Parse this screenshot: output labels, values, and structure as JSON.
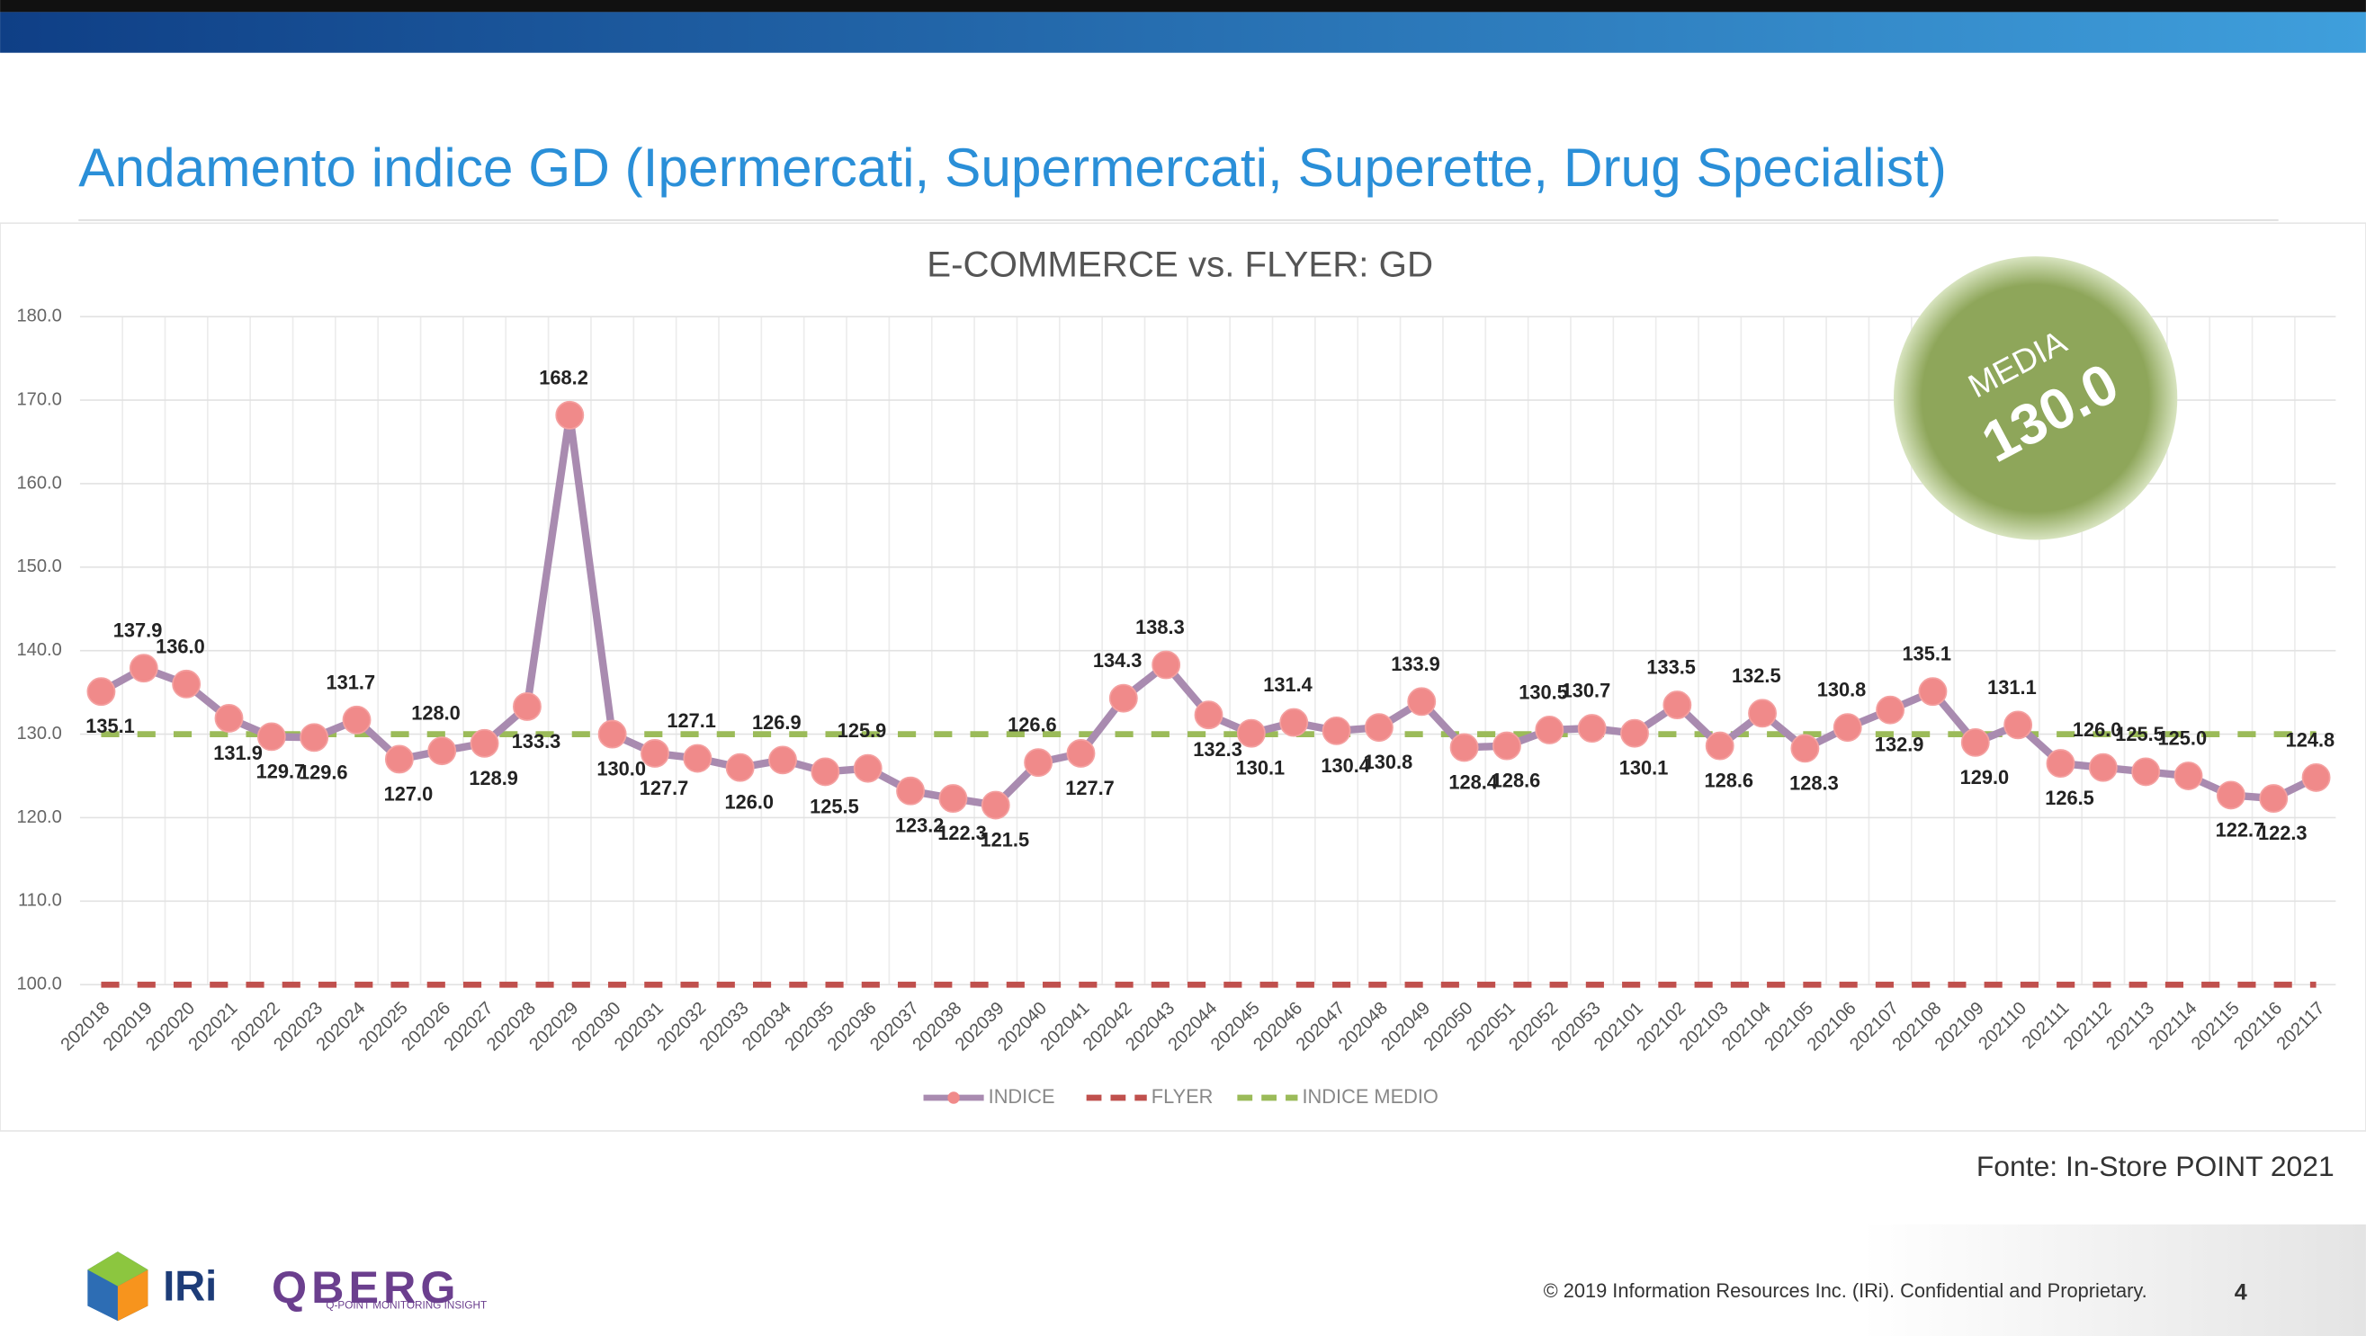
{
  "header": {
    "title": "Andamento indice GD (Ipermercati, Supermercati, Superette, Drug Specialist)"
  },
  "badge": {
    "title": "MEDIA",
    "text": "130.0"
  },
  "source": "Fonte: In-Store POINT 2021",
  "footer": {
    "copyright": "© 2019 Information Resources Inc. (IRi). Confidential and Proprietary.",
    "page": "4",
    "logo_iri": "IRi",
    "logo_qberg": "QBERG",
    "logo_qberg_tagline": "Q-POINT MONITORING INSIGHT"
  },
  "chart_data": {
    "type": "line",
    "title": "E-COMMERCE vs. FLYER: GD",
    "categories": [
      "202018",
      "202019",
      "202020",
      "202021",
      "202022",
      "202023",
      "202024",
      "202025",
      "202026",
      "202027",
      "202028",
      "202029",
      "202030",
      "202031",
      "202032",
      "202033",
      "202034",
      "202035",
      "202036",
      "202037",
      "202038",
      "202039",
      "202040",
      "202041",
      "202042",
      "202043",
      "202044",
      "202045",
      "202046",
      "202047",
      "202048",
      "202049",
      "202050",
      "202051",
      "202052",
      "202053",
      "202101",
      "202102",
      "202103",
      "202104",
      "202105",
      "202106",
      "202107",
      "202108",
      "202109",
      "202110",
      "202111",
      "202112",
      "202113",
      "202114",
      "202115",
      "202116",
      "202117"
    ],
    "series": [
      {
        "name": "INDICE",
        "color": "#a98bb0",
        "marker_color": "#f08a8a",
        "values": [
          135.1,
          137.9,
          136.0,
          131.9,
          129.7,
          129.6,
          131.7,
          127.0,
          128.0,
          128.9,
          133.3,
          168.2,
          130.0,
          127.7,
          127.1,
          126.0,
          126.9,
          125.5,
          125.9,
          123.2,
          122.3,
          121.5,
          126.6,
          127.7,
          134.3,
          138.3,
          132.3,
          130.1,
          131.4,
          130.4,
          130.8,
          133.9,
          128.4,
          128.6,
          130.5,
          130.7,
          130.1,
          133.5,
          128.6,
          132.5,
          128.3,
          130.8,
          132.9,
          135.1,
          129.0,
          131.1,
          126.5,
          126.0,
          125.5,
          125.0,
          122.7,
          122.3,
          124.8
        ],
        "value_labels": [
          "135.1",
          "137.9",
          "136.0",
          "131.9",
          "129.7",
          "129.6",
          "131.7",
          "127.0",
          "128.0",
          "128.9",
          "133.3",
          "168.2",
          "130.0",
          "127.7",
          "127.1",
          "126.0",
          "126.9",
          "125.5",
          "125.9",
          "123.2",
          "122.3",
          "121.5",
          "126.6",
          "127.7",
          "134.3",
          "138.3",
          "132.3",
          "130.1",
          "131.4",
          "130.4",
          "130.8",
          "133.9",
          "128.4",
          "128.6",
          "130.5",
          "130.7",
          "130.1",
          "133.5",
          "128.6",
          "132.5",
          "128.3",
          "130.8",
          "132.9",
          "135.1",
          "129.0",
          "131.1",
          "126.5",
          "126.0",
          "125.5",
          "125.0",
          "122.7",
          "122.3",
          "124.8"
        ]
      },
      {
        "name": "FLYER",
        "color": "#c0504d",
        "dashed": true,
        "values": [
          100,
          100,
          100,
          100,
          100,
          100,
          100,
          100,
          100,
          100,
          100,
          100,
          100,
          100,
          100,
          100,
          100,
          100,
          100,
          100,
          100,
          100,
          100,
          100,
          100,
          100,
          100,
          100,
          100,
          100,
          100,
          100,
          100,
          100,
          100,
          100,
          100,
          100,
          100,
          100,
          100,
          100,
          100,
          100,
          100,
          100,
          100,
          100,
          100,
          100,
          100,
          100,
          100
        ]
      },
      {
        "name": "INDICE MEDIO",
        "color": "#9bbb59",
        "dashed": true,
        "values": [
          130,
          130,
          130,
          130,
          130,
          130,
          130,
          130,
          130,
          130,
          130,
          130,
          130,
          130,
          130,
          130,
          130,
          130,
          130,
          130,
          130,
          130,
          130,
          130,
          130,
          130,
          130,
          130,
          130,
          130,
          130,
          130,
          130,
          130,
          130,
          130,
          130,
          130,
          130,
          130,
          130,
          130,
          130,
          130,
          130,
          130,
          130,
          130,
          130,
          130,
          130,
          130,
          130
        ]
      }
    ],
    "ylim": [
      100,
      180
    ],
    "yticks": [
      {
        "value": 100,
        "label": "100.0"
      },
      {
        "value": 110,
        "label": "110.0"
      },
      {
        "value": 120,
        "label": "120.0"
      },
      {
        "value": 130,
        "label": "130.0"
      },
      {
        "value": 140,
        "label": "140.0"
      },
      {
        "value": 150,
        "label": "150.0"
      },
      {
        "value": 160,
        "label": "160.0"
      },
      {
        "value": 170,
        "label": "170.0"
      },
      {
        "value": 180,
        "label": "180.0"
      }
    ],
    "grid": true,
    "legend": "bottom"
  }
}
